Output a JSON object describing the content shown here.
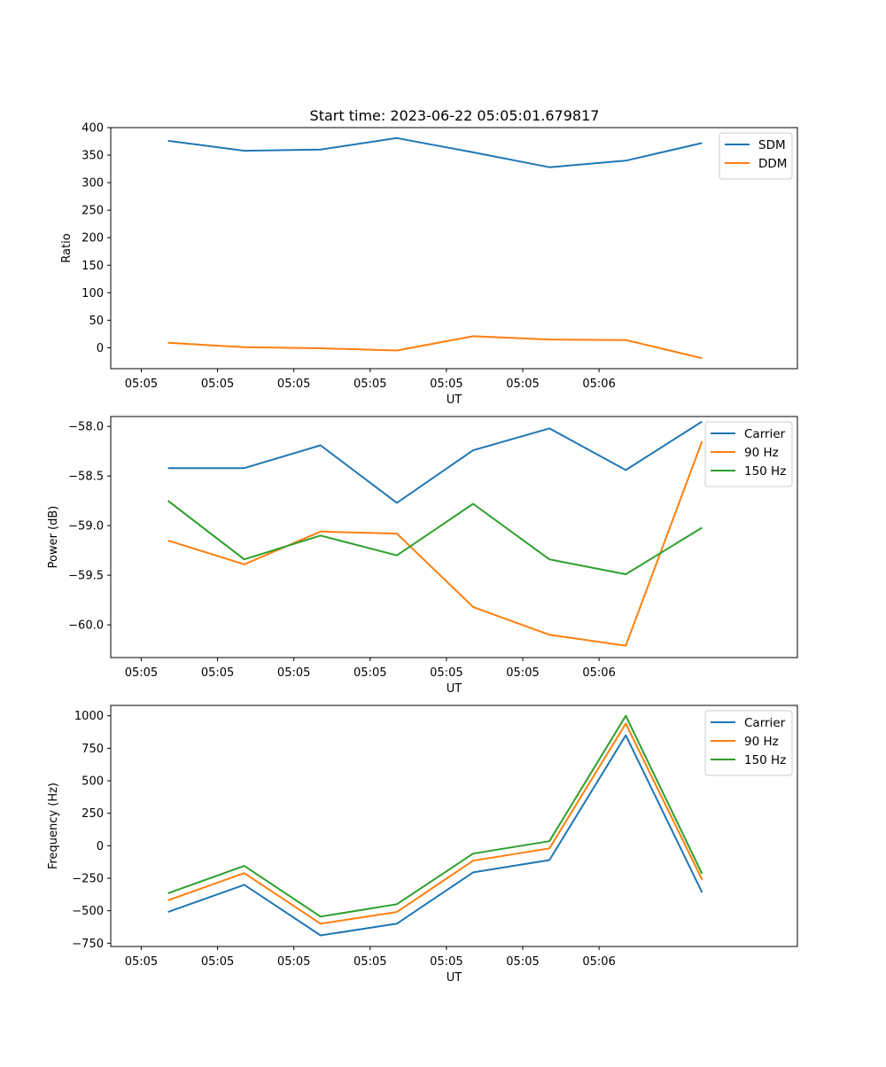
{
  "figure_title": "Start time: 2023-06-22 05:05:01.679817",
  "chart_data": [
    {
      "type": "line",
      "title": "Start time: 2023-06-22 05:05:01.679817",
      "xlabel": "UT",
      "ylabel": "Ratio",
      "x_tick_labels": [
        "05:05",
        "05:05",
        "05:05",
        "05:05",
        "05:05",
        "05:05",
        "05:06"
      ],
      "xlim": [
        -0.4,
        8.6
      ],
      "x": [
        0.35,
        1.35,
        2.35,
        3.35,
        4.35,
        5.35,
        6.35,
        7.35
      ],
      "ylim": [
        -38,
        400
      ],
      "y_ticks": [
        0,
        50,
        100,
        150,
        200,
        250,
        300,
        350,
        400
      ],
      "y_tick_labels": [
        "0",
        "50",
        "100",
        "150",
        "200",
        "250",
        "300",
        "350",
        "400"
      ],
      "legend_position": "upper-right",
      "series": [
        {
          "name": "SDM",
          "color": "#1f77b4",
          "values": [
            376,
            358,
            360,
            381,
            355,
            328,
            340,
            372
          ]
        },
        {
          "name": "DDM",
          "color": "#ff7f0e",
          "values": [
            9,
            1,
            -1,
            -5,
            21,
            15,
            14,
            -19
          ]
        }
      ]
    },
    {
      "type": "line",
      "xlabel": "UT",
      "ylabel": "Power (dB)",
      "x_tick_labels": [
        "05:05",
        "05:05",
        "05:05",
        "05:05",
        "05:05",
        "05:05",
        "05:06"
      ],
      "xlim": [
        -0.4,
        8.6
      ],
      "x": [
        0.35,
        1.35,
        2.35,
        3.35,
        4.35,
        5.35,
        6.35,
        7.35
      ],
      "ylim": [
        -60.33,
        -57.9
      ],
      "y_ticks": [
        -60.0,
        -59.5,
        -59.0,
        -58.5,
        -58.0
      ],
      "y_tick_labels": [
        "−60.0",
        "−59.5",
        "−59.0",
        "−58.5",
        "−58.0"
      ],
      "legend_position": "upper-right",
      "series": [
        {
          "name": "Carrier",
          "color": "#1f77b4",
          "values": [
            -58.42,
            -58.42,
            -58.19,
            -58.77,
            -58.24,
            -58.02,
            -58.44,
            -57.95
          ]
        },
        {
          "name": "90 Hz",
          "color": "#ff7f0e",
          "values": [
            -59.15,
            -59.39,
            -59.06,
            -59.08,
            -59.82,
            -60.1,
            -60.21,
            -58.15
          ]
        },
        {
          "name": "150 Hz",
          "color": "#2ca02c",
          "values": [
            -58.75,
            -59.34,
            -59.1,
            -59.3,
            -58.78,
            -59.34,
            -59.49,
            -59.02
          ]
        }
      ]
    },
    {
      "type": "line",
      "xlabel": "UT",
      "ylabel": "Frequency (Hz)",
      "x_tick_labels": [
        "05:05",
        "05:05",
        "05:05",
        "05:05",
        "05:05",
        "05:05",
        "05:06"
      ],
      "xlim": [
        -0.4,
        8.6
      ],
      "x": [
        0.35,
        1.35,
        2.35,
        3.35,
        4.35,
        5.35,
        6.35,
        7.35
      ],
      "ylim": [
        -775,
        1080
      ],
      "y_ticks": [
        -750,
        -500,
        -250,
        0,
        250,
        500,
        750,
        1000
      ],
      "y_tick_labels": [
        "−750",
        "−500",
        "−250",
        "0",
        "250",
        "500",
        "750",
        "1000"
      ],
      "legend_position": "upper-right",
      "series": [
        {
          "name": "Carrier",
          "color": "#1f77b4",
          "values": [
            -510,
            -300,
            -690,
            -600,
            -205,
            -110,
            850,
            -360
          ]
        },
        {
          "name": "90 Hz",
          "color": "#ff7f0e",
          "values": [
            -420,
            -210,
            -600,
            -510,
            -115,
            -20,
            940,
            -260
          ]
        },
        {
          "name": "150 Hz",
          "color": "#2ca02c",
          "values": [
            -365,
            -155,
            -545,
            -450,
            -60,
            35,
            1000,
            -215
          ]
        }
      ]
    }
  ]
}
